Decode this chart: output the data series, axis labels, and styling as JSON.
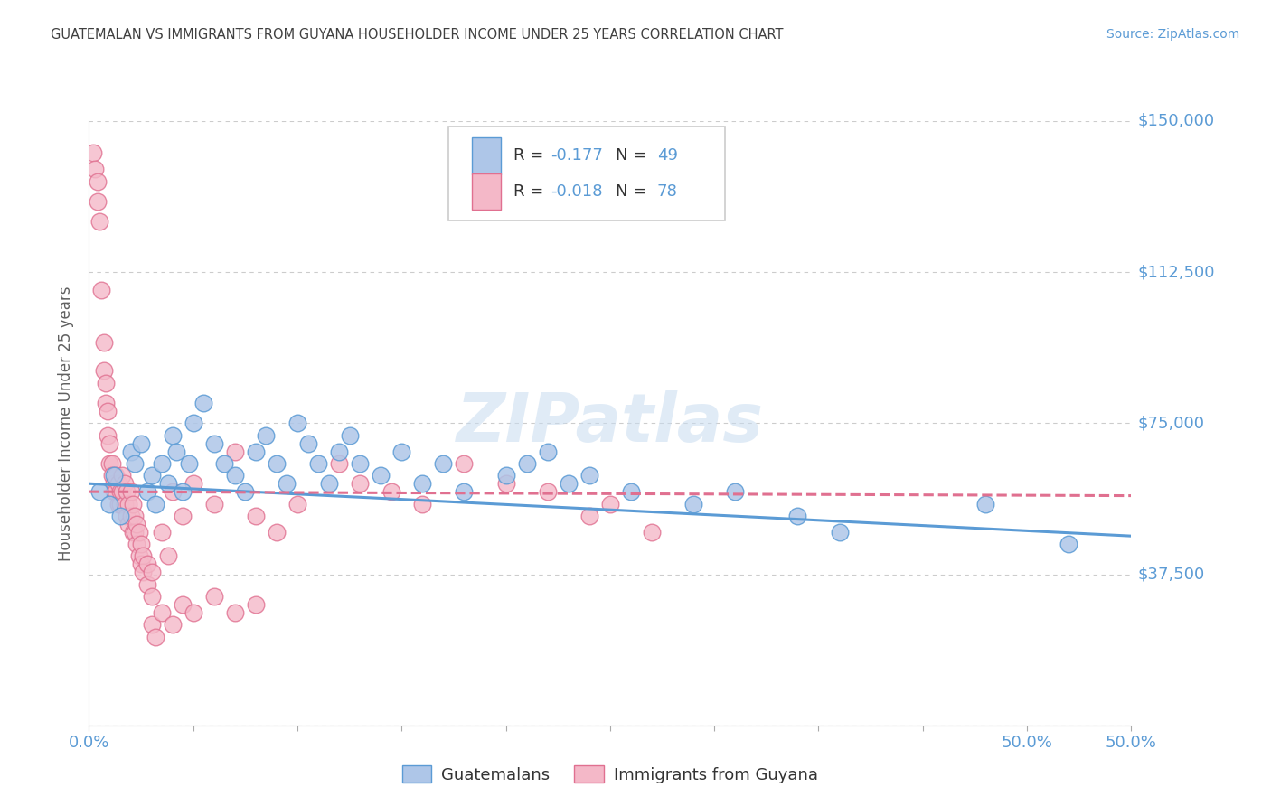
{
  "title": "GUATEMALAN VS IMMIGRANTS FROM GUYANA HOUSEHOLDER INCOME UNDER 25 YEARS CORRELATION CHART",
  "source": "Source: ZipAtlas.com",
  "ylabel": "Householder Income Under 25 years",
  "xlim": [
    0.0,
    0.5
  ],
  "ylim": [
    0,
    150000
  ],
  "yticks": [
    0,
    37500,
    75000,
    112500,
    150000
  ],
  "ytick_labels": [
    "",
    "$37,500",
    "$75,000",
    "$112,500",
    "$150,000"
  ],
  "xtick_positions": [
    0.0,
    0.05,
    0.1,
    0.15,
    0.2,
    0.25,
    0.3,
    0.35,
    0.4,
    0.45,
    0.5
  ],
  "xtick_labels_show": {
    "0.0": "0.0%",
    "0.5": "50.0%"
  },
  "legend_labels": [
    "Guatemalans",
    "Immigrants from Guyana"
  ],
  "watermark": "ZIPatlas",
  "blue_scatter": [
    [
      0.005,
      58000
    ],
    [
      0.01,
      55000
    ],
    [
      0.012,
      62000
    ],
    [
      0.015,
      52000
    ],
    [
      0.02,
      68000
    ],
    [
      0.022,
      65000
    ],
    [
      0.025,
      70000
    ],
    [
      0.028,
      58000
    ],
    [
      0.03,
      62000
    ],
    [
      0.032,
      55000
    ],
    [
      0.035,
      65000
    ],
    [
      0.038,
      60000
    ],
    [
      0.04,
      72000
    ],
    [
      0.042,
      68000
    ],
    [
      0.045,
      58000
    ],
    [
      0.048,
      65000
    ],
    [
      0.05,
      75000
    ],
    [
      0.055,
      80000
    ],
    [
      0.06,
      70000
    ],
    [
      0.065,
      65000
    ],
    [
      0.07,
      62000
    ],
    [
      0.075,
      58000
    ],
    [
      0.08,
      68000
    ],
    [
      0.085,
      72000
    ],
    [
      0.09,
      65000
    ],
    [
      0.095,
      60000
    ],
    [
      0.1,
      75000
    ],
    [
      0.105,
      70000
    ],
    [
      0.11,
      65000
    ],
    [
      0.115,
      60000
    ],
    [
      0.12,
      68000
    ],
    [
      0.125,
      72000
    ],
    [
      0.13,
      65000
    ],
    [
      0.14,
      62000
    ],
    [
      0.15,
      68000
    ],
    [
      0.16,
      60000
    ],
    [
      0.17,
      65000
    ],
    [
      0.18,
      58000
    ],
    [
      0.2,
      62000
    ],
    [
      0.21,
      65000
    ],
    [
      0.22,
      68000
    ],
    [
      0.23,
      60000
    ],
    [
      0.24,
      62000
    ],
    [
      0.26,
      58000
    ],
    [
      0.29,
      55000
    ],
    [
      0.31,
      58000
    ],
    [
      0.34,
      52000
    ],
    [
      0.36,
      48000
    ],
    [
      0.43,
      55000
    ],
    [
      0.47,
      45000
    ]
  ],
  "pink_scatter": [
    [
      0.002,
      142000
    ],
    [
      0.003,
      138000
    ],
    [
      0.004,
      135000
    ],
    [
      0.004,
      130000
    ],
    [
      0.005,
      125000
    ],
    [
      0.006,
      108000
    ],
    [
      0.007,
      95000
    ],
    [
      0.007,
      88000
    ],
    [
      0.008,
      85000
    ],
    [
      0.008,
      80000
    ],
    [
      0.009,
      78000
    ],
    [
      0.009,
      72000
    ],
    [
      0.01,
      70000
    ],
    [
      0.01,
      65000
    ],
    [
      0.011,
      65000
    ],
    [
      0.011,
      62000
    ],
    [
      0.012,
      60000
    ],
    [
      0.012,
      58000
    ],
    [
      0.013,
      62000
    ],
    [
      0.013,
      58000
    ],
    [
      0.014,
      60000
    ],
    [
      0.014,
      55000
    ],
    [
      0.015,
      58000
    ],
    [
      0.015,
      55000
    ],
    [
      0.016,
      62000
    ],
    [
      0.016,
      58000
    ],
    [
      0.017,
      60000
    ],
    [
      0.017,
      55000
    ],
    [
      0.018,
      58000
    ],
    [
      0.018,
      52000
    ],
    [
      0.019,
      55000
    ],
    [
      0.019,
      50000
    ],
    [
      0.02,
      58000
    ],
    [
      0.02,
      52000
    ],
    [
      0.021,
      55000
    ],
    [
      0.021,
      48000
    ],
    [
      0.022,
      52000
    ],
    [
      0.022,
      48000
    ],
    [
      0.023,
      50000
    ],
    [
      0.023,
      45000
    ],
    [
      0.024,
      48000
    ],
    [
      0.024,
      42000
    ],
    [
      0.025,
      45000
    ],
    [
      0.025,
      40000
    ],
    [
      0.026,
      42000
    ],
    [
      0.026,
      38000
    ],
    [
      0.028,
      40000
    ],
    [
      0.028,
      35000
    ],
    [
      0.03,
      38000
    ],
    [
      0.03,
      32000
    ],
    [
      0.035,
      48000
    ],
    [
      0.038,
      42000
    ],
    [
      0.04,
      58000
    ],
    [
      0.045,
      52000
    ],
    [
      0.05,
      60000
    ],
    [
      0.06,
      55000
    ],
    [
      0.07,
      68000
    ],
    [
      0.08,
      52000
    ],
    [
      0.09,
      48000
    ],
    [
      0.1,
      55000
    ],
    [
      0.12,
      65000
    ],
    [
      0.13,
      60000
    ],
    [
      0.145,
      58000
    ],
    [
      0.16,
      55000
    ],
    [
      0.18,
      65000
    ],
    [
      0.2,
      60000
    ],
    [
      0.22,
      58000
    ],
    [
      0.24,
      52000
    ],
    [
      0.25,
      55000
    ],
    [
      0.27,
      48000
    ],
    [
      0.03,
      25000
    ],
    [
      0.032,
      22000
    ],
    [
      0.035,
      28000
    ],
    [
      0.04,
      25000
    ],
    [
      0.045,
      30000
    ],
    [
      0.05,
      28000
    ],
    [
      0.06,
      32000
    ],
    [
      0.07,
      28000
    ],
    [
      0.08,
      30000
    ]
  ],
  "blue_line_x": [
    0.0,
    0.5
  ],
  "blue_line_y": [
    60000,
    47000
  ],
  "pink_line_x": [
    0.0,
    0.5
  ],
  "pink_line_y": [
    58000,
    57000
  ],
  "blue_color": "#5b9bd5",
  "pink_color": "#e07090",
  "blue_fill": "#aec6e8",
  "pink_fill": "#f4b8c8",
  "grid_color": "#cccccc",
  "background_color": "#ffffff",
  "title_color": "#404040",
  "source_color": "#5b9bd5",
  "axis_label_color": "#606060",
  "tick_color": "#5b9bd5"
}
